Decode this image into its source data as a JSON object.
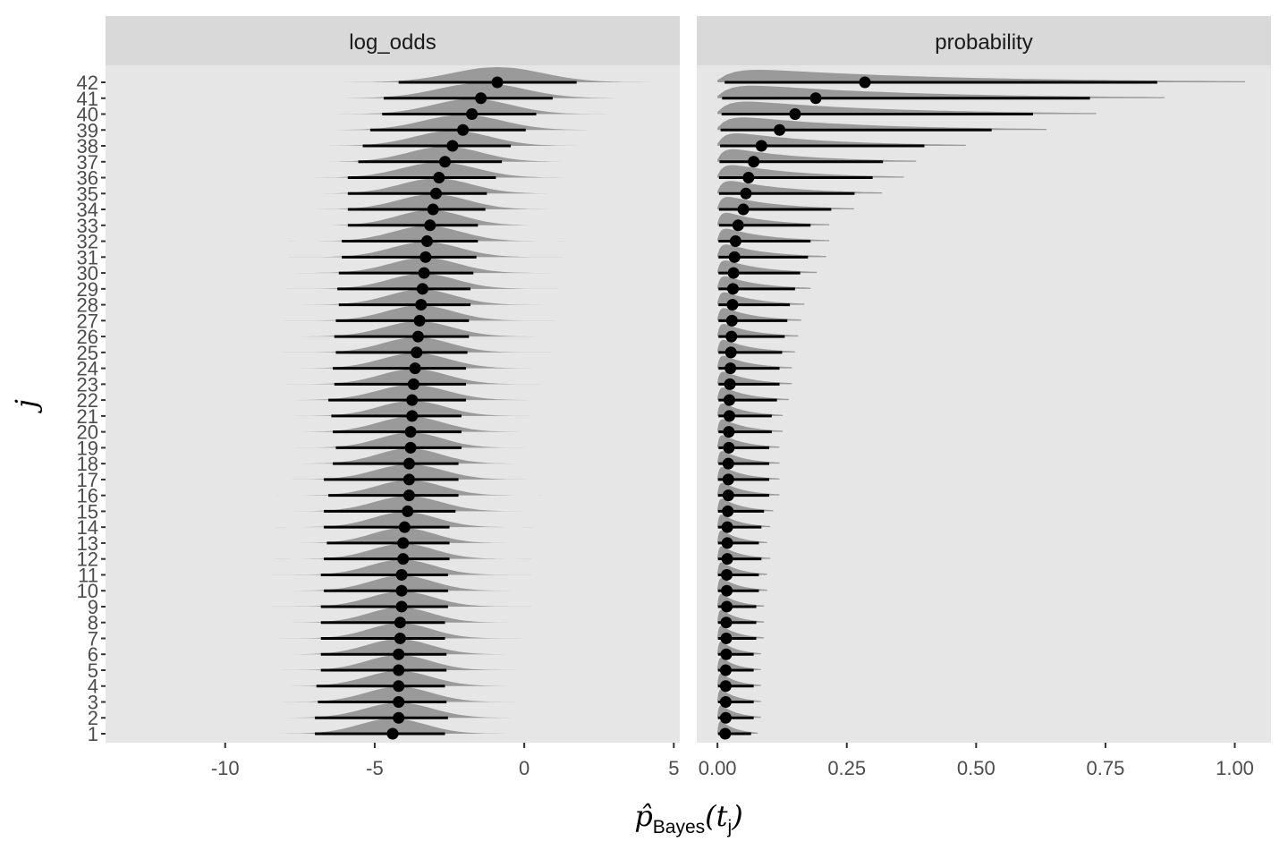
{
  "chart_data": {
    "type": "pointrange-halfeye",
    "y_label": "j",
    "x_label_main": "p̂",
    "x_label_sub": "Bayes",
    "x_label_arg": "(t",
    "x_label_arg_sub": "j",
    "x_label_close": ")",
    "rows": [
      "1",
      "2",
      "3",
      "4",
      "5",
      "6",
      "7",
      "8",
      "9",
      "10",
      "11",
      "12",
      "13",
      "14",
      "15",
      "16",
      "17",
      "18",
      "19",
      "20",
      "21",
      "22",
      "23",
      "24",
      "25",
      "26",
      "27",
      "28",
      "29",
      "30",
      "31",
      "32",
      "33",
      "34",
      "35",
      "36",
      "37",
      "38",
      "39",
      "40",
      "41",
      "42"
    ],
    "panels": [
      {
        "name": "log_odds",
        "xlim": [
          -14,
          5.2
        ],
        "xticks": [
          -10,
          -5,
          0,
          5
        ],
        "xtick_labels": [
          "-10",
          "-5",
          "0",
          "5"
        ],
        "point": [
          -4.4,
          -4.2,
          -4.2,
          -4.2,
          -4.2,
          -4.2,
          -4.15,
          -4.15,
          -4.1,
          -4.1,
          -4.1,
          -4.05,
          -4.05,
          -4.0,
          -3.9,
          -3.85,
          -3.85,
          -3.85,
          -3.8,
          -3.8,
          -3.75,
          -3.75,
          -3.7,
          -3.65,
          -3.6,
          -3.55,
          -3.5,
          -3.45,
          -3.4,
          -3.35,
          -3.3,
          -3.25,
          -3.15,
          -3.05,
          -2.95,
          -2.85,
          -2.65,
          -2.4,
          -2.05,
          -1.75,
          -1.45,
          -0.9
        ],
        "lower": [
          -7.0,
          -7.0,
          -6.9,
          -6.95,
          -6.8,
          -6.8,
          -6.8,
          -6.8,
          -6.8,
          -6.7,
          -6.8,
          -6.7,
          -6.6,
          -6.7,
          -6.7,
          -6.55,
          -6.7,
          -6.4,
          -6.3,
          -6.4,
          -6.45,
          -6.55,
          -6.35,
          -6.4,
          -6.3,
          -6.35,
          -6.3,
          -6.2,
          -6.25,
          -6.2,
          -6.1,
          -6.1,
          -5.9,
          -5.9,
          -5.9,
          -5.9,
          -5.55,
          -5.4,
          -5.15,
          -4.75,
          -4.7,
          -4.2
        ],
        "upper": [
          -2.65,
          -2.55,
          -2.6,
          -2.65,
          -2.6,
          -2.6,
          -2.65,
          -2.65,
          -2.55,
          -2.55,
          -2.55,
          -2.5,
          -2.5,
          -2.5,
          -2.3,
          -2.2,
          -2.2,
          -2.2,
          -2.1,
          -2.1,
          -2.1,
          -1.95,
          -1.95,
          -1.95,
          -1.9,
          -1.85,
          -1.85,
          -1.8,
          -1.8,
          -1.7,
          -1.6,
          -1.55,
          -1.55,
          -1.3,
          -1.25,
          -0.95,
          -0.75,
          -0.45,
          0.05,
          0.4,
          0.95,
          1.75
        ]
      },
      {
        "name": "probability",
        "xlim": [
          -0.04,
          1.07
        ],
        "xticks": [
          0.0,
          0.25,
          0.5,
          0.75,
          1.0
        ],
        "xtick_labels": [
          "0.00",
          "0.25",
          "0.50",
          "0.75",
          "1.00"
        ],
        "point": [
          0.015,
          0.016,
          0.016,
          0.016,
          0.016,
          0.017,
          0.017,
          0.017,
          0.018,
          0.018,
          0.018,
          0.019,
          0.019,
          0.019,
          0.02,
          0.021,
          0.021,
          0.021,
          0.022,
          0.022,
          0.023,
          0.023,
          0.024,
          0.025,
          0.026,
          0.027,
          0.028,
          0.029,
          0.03,
          0.031,
          0.033,
          0.035,
          0.04,
          0.05,
          0.055,
          0.06,
          0.07,
          0.085,
          0.12,
          0.15,
          0.19,
          0.285
        ],
        "lower": [
          0.001,
          0.001,
          0.001,
          0.001,
          0.001,
          0.001,
          0.001,
          0.001,
          0.001,
          0.001,
          0.001,
          0.001,
          0.001,
          0.001,
          0.001,
          0.001,
          0.001,
          0.002,
          0.002,
          0.002,
          0.002,
          0.002,
          0.002,
          0.002,
          0.002,
          0.002,
          0.002,
          0.002,
          0.002,
          0.002,
          0.002,
          0.002,
          0.003,
          0.003,
          0.003,
          0.003,
          0.004,
          0.005,
          0.006,
          0.008,
          0.009,
          0.014
        ],
        "upper": [
          0.065,
          0.07,
          0.07,
          0.07,
          0.07,
          0.07,
          0.075,
          0.075,
          0.075,
          0.08,
          0.08,
          0.085,
          0.08,
          0.085,
          0.09,
          0.1,
          0.1,
          0.1,
          0.1,
          0.105,
          0.105,
          0.115,
          0.12,
          0.12,
          0.125,
          0.13,
          0.135,
          0.14,
          0.15,
          0.16,
          0.175,
          0.18,
          0.18,
          0.22,
          0.265,
          0.3,
          0.32,
          0.4,
          0.53,
          0.61,
          0.72,
          0.85
        ]
      }
    ]
  }
}
